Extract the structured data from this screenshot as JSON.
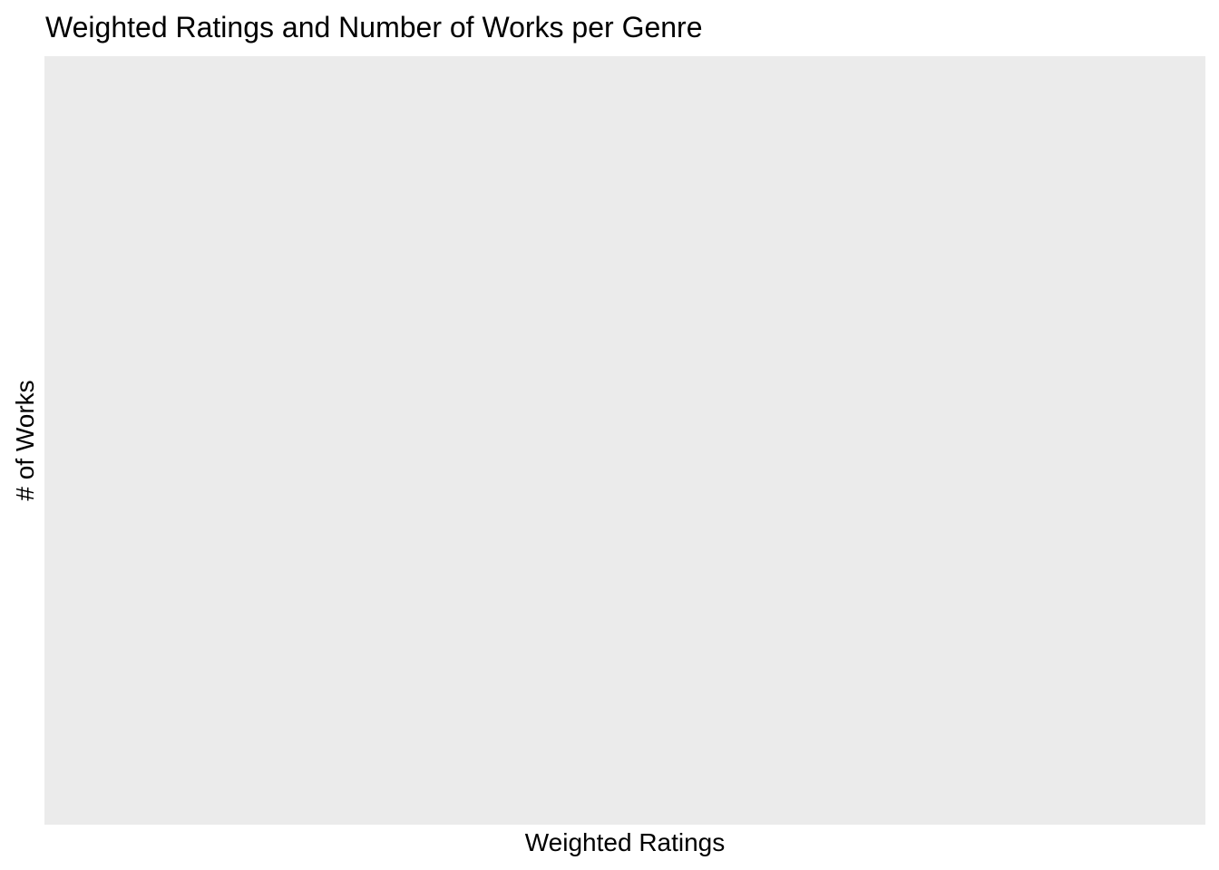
{
  "chart_data": {
    "type": "scatter",
    "title": "Weighted Ratings and Number of Works per Genre",
    "xlabel": "Weighted Ratings",
    "ylabel": "# of Works",
    "series": [],
    "grid": false,
    "colors": {
      "panel_background": "#ebebeb",
      "page_background": "#ffffff",
      "text": "#000000"
    }
  }
}
